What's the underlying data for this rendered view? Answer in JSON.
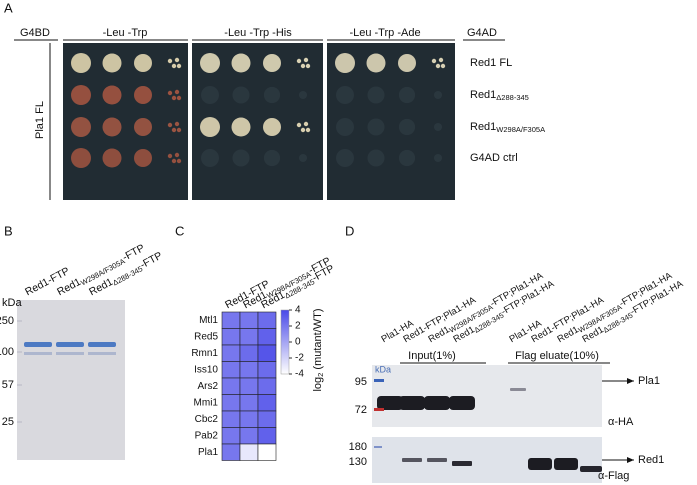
{
  "panel_a": {
    "label": "A",
    "headers": {
      "left": "G4BD",
      "plates": [
        "-Leu -Trp",
        "-Leu -Trp -His",
        "-Leu -Trp -Ade"
      ],
      "right": "G4AD"
    },
    "bait": "Pla1 FL",
    "preys": [
      {
        "name": "Red1 FL"
      },
      {
        "name": "Red1",
        "sub": "Δ288-345"
      },
      {
        "name": "Red1",
        "sub": "W298A/F305A"
      },
      {
        "name": "G4AD ctrl"
      }
    ]
  },
  "panel_b": {
    "label": "B",
    "lanes": [
      {
        "name": "Red1-FTP"
      },
      {
        "name": "Red1",
        "sub": "W298A/F305A",
        "suffix": "-FTP"
      },
      {
        "name": "Red1",
        "sub": "Δ288-345",
        "suffix": "-FTP"
      }
    ],
    "unit": "kDa",
    "markers": [
      250,
      100,
      57,
      25
    ]
  },
  "panel_c": {
    "label": "C",
    "columns": [
      {
        "name": "Red1-FTP"
      },
      {
        "name": "Red1",
        "sub": "W298A/F305A",
        "suffix": "-FTP"
      },
      {
        "name": "Red1",
        "sub": "Δ288-345",
        "suffix": "-FTP"
      }
    ],
    "rows": [
      "Mtl1",
      "Red5",
      "Rmn1",
      "Iss10",
      "Ars2",
      "Mmi1",
      "Cbc2",
      "Pab2",
      "Pla1"
    ],
    "values": [
      [
        2,
        2,
        2.5
      ],
      [
        2,
        2,
        3
      ],
      [
        2,
        2.5,
        3.5
      ],
      [
        2,
        2,
        2.5
      ],
      [
        2,
        2,
        2.5
      ],
      [
        2,
        2,
        3
      ],
      [
        2,
        2,
        2.5
      ],
      [
        2,
        2,
        3
      ],
      [
        2,
        -3,
        -4
      ]
    ],
    "colorbar": {
      "label": {
        "base": "log",
        "sub": "2",
        "rest": " (mutant/WT)"
      },
      "range": [
        -4,
        4
      ],
      "ticks": [
        4,
        2,
        0,
        -2,
        -4
      ]
    }
  },
  "panel_d": {
    "label": "D",
    "lanes": [
      {
        "name": "Pla1-HA"
      },
      {
        "name": "Red1-FTP;Pla1-HA"
      },
      {
        "name": "Red1",
        "sub": "W298A/F305A",
        "suffix": "-FTP;Pla1-HA"
      },
      {
        "name": "Red1",
        "sub": "Δ288-345",
        "suffix": "-FTP;Pla1-HA"
      },
      {
        "name": "Pla1-HA"
      },
      {
        "name": "Red1-FTP;Pla1-HA"
      },
      {
        "name": "Red1",
        "sub": "W298A/F305A",
        "suffix": "-FTP;Pla1-HA"
      },
      {
        "name": "Red1",
        "sub": "Δ288-345",
        "suffix": "-FTP;Pla1-HA"
      }
    ],
    "groups": [
      "Input(1%)",
      "Flag eluate(10%)"
    ],
    "unit": "kDa",
    "markers_top": [
      95,
      72
    ],
    "markers_bottom": [
      180,
      130
    ],
    "targets": [
      "Pla1",
      "Red1"
    ],
    "antibodies": [
      "α-HA",
      "α-Flag"
    ]
  }
}
